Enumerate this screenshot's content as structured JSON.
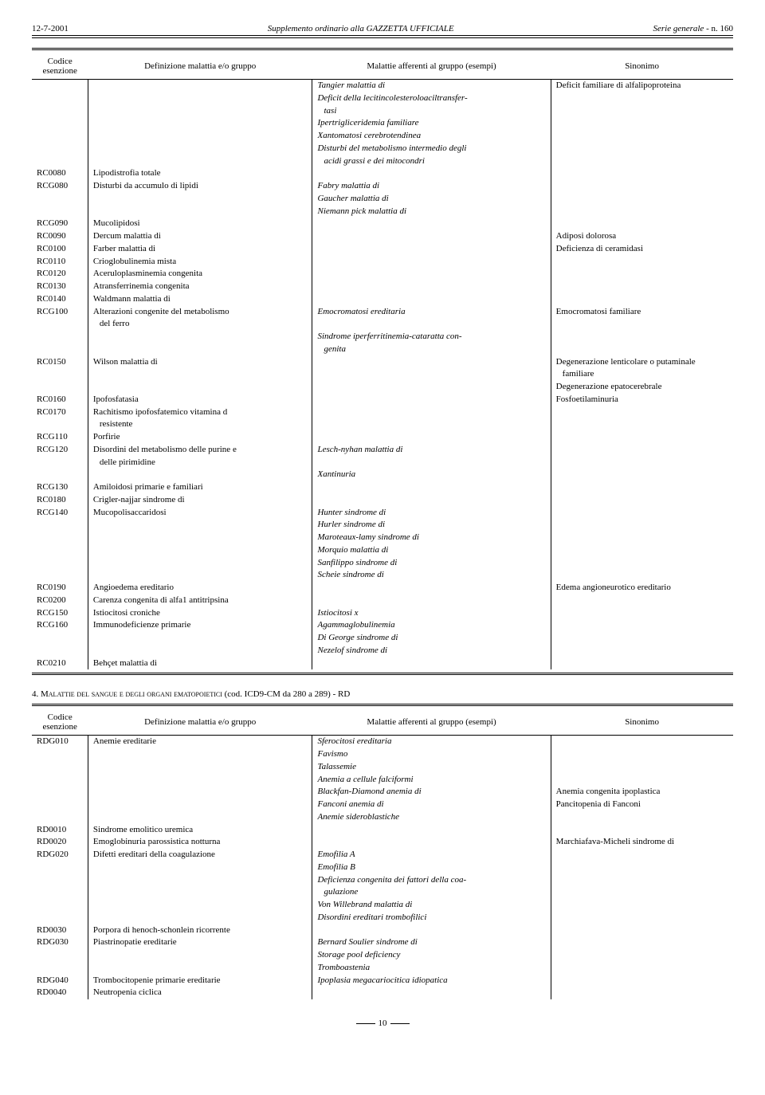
{
  "header": {
    "date": "12-7-2001",
    "center": "Supplemento ordinario alla GAZZETTA UFFICIALE",
    "right_prefix": "Serie generale",
    "right_suffix": "- n. 160"
  },
  "table1": {
    "headers": {
      "code1": "Codice",
      "code2": "esenzione",
      "def": "Definizione malattia e/o gruppo",
      "mal": "Malattie afferenti al gruppo (esempi)",
      "sin": "Sinonimo"
    },
    "rows": [
      {
        "code": "",
        "def": "",
        "mal_i": "Tangier malattia di",
        "sin": "Deficit familiare di alfalipoproteina"
      },
      {
        "code": "",
        "def": "",
        "mal_i": "Deficit della lecitincolesteroloaciltransfer-",
        "sin": ""
      },
      {
        "code": "",
        "def": "",
        "mal_i_indent": "tasi",
        "sin": ""
      },
      {
        "code": "",
        "def": "",
        "mal_i": "Ipertrigliceridemia familiare",
        "sin": ""
      },
      {
        "code": "",
        "def": "",
        "mal_i": "Xantomatosi cerebrotendinea",
        "sin": ""
      },
      {
        "code": "",
        "def": "",
        "mal_i": "Disturbi del metabolismo intermedio degli",
        "sin": ""
      },
      {
        "code": "",
        "def": "",
        "mal_i_indent": "acidi grassi e dei mitocondri",
        "sin": ""
      },
      {
        "code": "RC0080",
        "def": "Lipodistrofia totale",
        "mal": "",
        "sin": ""
      },
      {
        "code": "RCG080",
        "def": "Disturbi da accumulo di lipidi",
        "mal_i": "Fabry malattia di",
        "sin": ""
      },
      {
        "code": "",
        "def": "",
        "mal_i": "Gaucher malattia di",
        "sin": ""
      },
      {
        "code": "",
        "def": "",
        "mal_i": "Niemann pick malattia di",
        "sin": ""
      },
      {
        "code": "RCG090",
        "def": "Mucolipidosi",
        "mal": "",
        "sin": ""
      },
      {
        "code": "RC0090",
        "def": "Dercum malattia di",
        "mal": "",
        "sin": "Adiposi dolorosa"
      },
      {
        "code": "RC0100",
        "def": "Farber malattia di",
        "mal": "",
        "sin": "Deficienza di ceramidasi"
      },
      {
        "code": "RC0110",
        "def": "Crioglobulinemia mista",
        "mal": "",
        "sin": ""
      },
      {
        "code": "RC0120",
        "def": "Aceruloplasminemia congenita",
        "mal": "",
        "sin": ""
      },
      {
        "code": "RC0130",
        "def": "Atransferrinemia congenita",
        "mal": "",
        "sin": ""
      },
      {
        "code": "RC0140",
        "def": "Waldmann malattia di",
        "mal": "",
        "sin": ""
      },
      {
        "code": "RCG100",
        "def": "Alterazioni congenite del metabolismo",
        "mal_i": "Emocromatosi ereditaria",
        "sin": "Emocromatosi familiare"
      },
      {
        "code": "",
        "def_indent": "del ferro",
        "mal": "",
        "sin": ""
      },
      {
        "code": "",
        "def": "",
        "mal_i": "Sindrome iperferritinemia-cataratta con-",
        "sin": ""
      },
      {
        "code": "",
        "def": "",
        "mal_i_indent": "genita",
        "sin": ""
      },
      {
        "code": "RC0150",
        "def": "Wilson malattia di",
        "mal": "",
        "sin": "Degenerazione lenticolare o putaminale"
      },
      {
        "code": "",
        "def": "",
        "mal": "",
        "sin_indent": "familiare"
      },
      {
        "code": "",
        "def": "",
        "mal": "",
        "sin": "Degenerazione epatocerebrale"
      },
      {
        "code": "RC0160",
        "def": "Ipofosfatasia",
        "mal": "",
        "sin": "Fosfoetilaminuria"
      },
      {
        "code": "RC0170",
        "def": "Rachitismo ipofosfatemico vitamina d",
        "mal": "",
        "sin": ""
      },
      {
        "code": "",
        "def_indent": "resistente",
        "mal": "",
        "sin": ""
      },
      {
        "code": "RCG110",
        "def": "Porfirie",
        "mal": "",
        "sin": ""
      },
      {
        "code": "RCG120",
        "def": "Disordini del metabolismo delle purine e",
        "mal_i": "Lesch-nyhan malattia di",
        "sin": ""
      },
      {
        "code": "",
        "def_indent": "delle pirimidine",
        "mal": "",
        "sin": ""
      },
      {
        "code": "",
        "def": "",
        "mal_i": "Xantinuria",
        "sin": ""
      },
      {
        "code": "RCG130",
        "def": "Amiloidosi primarie e familiari",
        "mal": "",
        "sin": ""
      },
      {
        "code": "RC0180",
        "def": "Crigler-najjar sindrome di",
        "mal": "",
        "sin": ""
      },
      {
        "code": "RCG140",
        "def": "Mucopolisaccaridosi",
        "mal_i": "Hunter sindrome di",
        "sin": ""
      },
      {
        "code": "",
        "def": "",
        "mal_i": "Hurler sindrome di",
        "sin": ""
      },
      {
        "code": "",
        "def": "",
        "mal_i": "Maroteaux-lamy sindrome di",
        "sin": ""
      },
      {
        "code": "",
        "def": "",
        "mal_i": "Morquio malattia di",
        "sin": ""
      },
      {
        "code": "",
        "def": "",
        "mal_i": "Sanfilippo sindrome di",
        "sin": ""
      },
      {
        "code": "",
        "def": "",
        "mal_i": "Scheie sindrome di",
        "sin": ""
      },
      {
        "code": "RC0190",
        "def": "Angioedema ereditario",
        "mal": "",
        "sin": "Edema angioneurotico ereditario"
      },
      {
        "code": "RC0200",
        "def": "Carenza congenita di alfa1 antitripsina",
        "mal": "",
        "sin": ""
      },
      {
        "code": "RCG150",
        "def": "Istiocitosi croniche",
        "mal_i": "Istiocitosi x",
        "sin": ""
      },
      {
        "code": "RCG160",
        "def": "Immunodeficienze primarie",
        "mal_i": "Agammaglobulinemia",
        "sin": ""
      },
      {
        "code": "",
        "def": "",
        "mal_i": "Di George sindrome di",
        "sin": ""
      },
      {
        "code": "",
        "def": "",
        "mal_i": "Nezelof sindrome di",
        "sin": ""
      },
      {
        "code": "RC0210",
        "def": "Behçet malattia di",
        "mal": "",
        "sin": ""
      }
    ]
  },
  "section2": {
    "title_pre": "4. ",
    "title_sc": "Malattie del sangue e degli organi ematopoietici",
    "title_post": " (cod. ICD9-CM da 280 a 289) - RD"
  },
  "table2": {
    "headers": {
      "code1": "Codice",
      "code2": "esenzione",
      "def": "Definizione malattia e/o gruppo",
      "mal": "Malattie afferenti al gruppo (esempi)",
      "sin": "Sinonimo"
    },
    "rows": [
      {
        "code": "RDG010",
        "def": "Anemie ereditarie",
        "mal_i": "Sferocitosi ereditaria",
        "sin": ""
      },
      {
        "code": "",
        "def": "",
        "mal_i": "Favismo",
        "sin": ""
      },
      {
        "code": "",
        "def": "",
        "mal_i": "Talassemie",
        "sin": ""
      },
      {
        "code": "",
        "def": "",
        "mal_i": "Anemia a cellule falciformi",
        "sin": ""
      },
      {
        "code": "",
        "def": "",
        "mal_i": "Blackfan-Diamond anemia di",
        "sin": "Anemia congenita ipoplastica"
      },
      {
        "code": "",
        "def": "",
        "mal_i": "Fanconi anemia di",
        "sin": "Pancitopenia di Fanconi"
      },
      {
        "code": "",
        "def": "",
        "mal_i": "Anemie sideroblastiche",
        "sin": ""
      },
      {
        "code": "RD0010",
        "def": "Sindrome emolitico uremica",
        "mal": "",
        "sin": ""
      },
      {
        "code": "RD0020",
        "def": "Emoglobinuria parossistica notturna",
        "mal": "",
        "sin": "Marchiafava-Micheli sindrome di"
      },
      {
        "code": "RDG020",
        "def": "Difetti ereditari della coagulazione",
        "mal_i": "Emofilia A",
        "sin": ""
      },
      {
        "code": "",
        "def": "",
        "mal_i": "Emofilia B",
        "sin": ""
      },
      {
        "code": "",
        "def": "",
        "mal_i": "Deficienza congenita dei fattori della coa-",
        "sin": ""
      },
      {
        "code": "",
        "def": "",
        "mal_i_indent": "gulazione",
        "sin": ""
      },
      {
        "code": "",
        "def": "",
        "mal_i": "Von Willebrand malattia di",
        "sin": ""
      },
      {
        "code": "",
        "def": "",
        "mal_i": "Disordini ereditari trombofilici",
        "sin": ""
      },
      {
        "code": "RD0030",
        "def": "Porpora di henoch-schonlein ricorrente",
        "mal": "",
        "sin": ""
      },
      {
        "code": "RDG030",
        "def": "Piastrinopatie ereditarie",
        "mal_i": "Bernard Soulier sindrome di",
        "sin": ""
      },
      {
        "code": "",
        "def": "",
        "mal_i": "Storage pool deficiency",
        "sin": ""
      },
      {
        "code": "",
        "def": "",
        "mal_i": "Tromboastenia",
        "sin": ""
      },
      {
        "code": "RDG040",
        "def": "Trombocitopenie primarie ereditarie",
        "mal_i": "Ipoplasia megacariocitica idiopatica",
        "sin": ""
      },
      {
        "code": "RD0040",
        "def": "Neutropenia ciclica",
        "mal": "",
        "sin": ""
      }
    ]
  },
  "page_number": "10"
}
